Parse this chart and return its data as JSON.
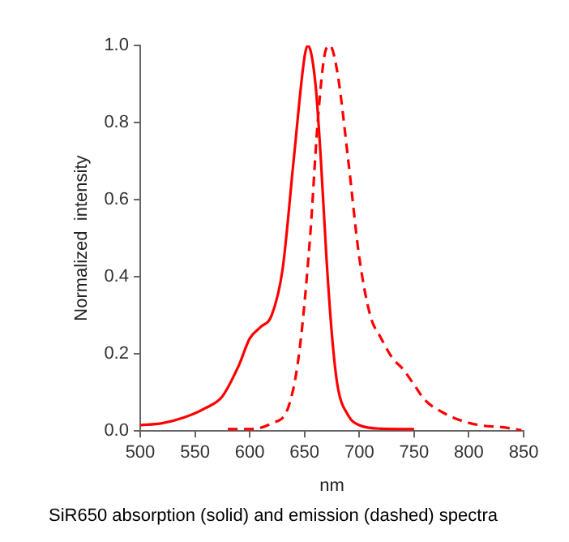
{
  "chart_data": {
    "type": "line",
    "xlabel": "nm",
    "ylabel": "Normalized  intensity",
    "annotations": [
      "SiR650 absorption (solid) and emission (dashed) spectra"
    ],
    "xlim": [
      500,
      850
    ],
    "xticks": [
      500,
      550,
      600,
      650,
      700,
      750,
      800,
      850
    ],
    "ylim": [
      0,
      1.0
    ],
    "yticks": [
      {
        "value": 0,
        "label": "0.0"
      },
      {
        "value": 0.2,
        "label": "0.2"
      },
      {
        "value": 0.4,
        "label": "0.4"
      },
      {
        "value": 0.6,
        "label": "0.6"
      },
      {
        "value": 0.8,
        "label": "0.8"
      },
      {
        "value": 1.0,
        "label": "1.0"
      }
    ],
    "grid": false,
    "legend": false,
    "marker": "none",
    "series": [
      {
        "color": "#ff0000",
        "line_style": "solid",
        "x": [
          500,
          520,
          540,
          560,
          575,
          590,
          600,
          610,
          620,
          630,
          640,
          650,
          653,
          660,
          665,
          670,
          675,
          680,
          690,
          700,
          720,
          750
        ],
        "values": [
          0.015,
          0.02,
          0.035,
          0.06,
          0.09,
          0.17,
          0.24,
          0.27,
          0.3,
          0.42,
          0.7,
          0.97,
          1.0,
          0.9,
          0.7,
          0.45,
          0.25,
          0.12,
          0.04,
          0.015,
          0.006,
          0.005
        ]
      },
      {
        "color": "#ff0000",
        "line_style": "dashed",
        "x": [
          580,
          600,
          620,
          635,
          645,
          655,
          662,
          668,
          673,
          680,
          690,
          700,
          710,
          720,
          730,
          740,
          750,
          760,
          775,
          790,
          810,
          830,
          848
        ],
        "values": [
          0.005,
          0.005,
          0.02,
          0.06,
          0.2,
          0.5,
          0.8,
          0.97,
          1.0,
          0.93,
          0.7,
          0.45,
          0.3,
          0.24,
          0.19,
          0.16,
          0.12,
          0.08,
          0.05,
          0.03,
          0.015,
          0.01,
          0.002
        ]
      }
    ]
  }
}
